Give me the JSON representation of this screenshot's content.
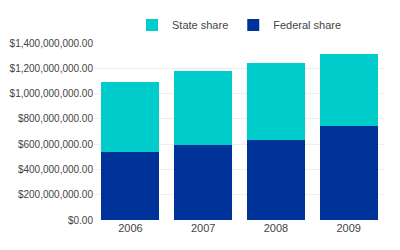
{
  "chart_data": {
    "type": "bar",
    "stacked": true,
    "categories": [
      "2006",
      "2007",
      "2008",
      "2009"
    ],
    "series": [
      {
        "name": "Federal share",
        "color": "#003399",
        "values": [
          540000000,
          590000000,
          635000000,
          740000000
        ]
      },
      {
        "name": "State share",
        "color": "#00CCCC",
        "values": [
          550000000,
          585000000,
          610000000,
          570000000
        ]
      }
    ],
    "ylim": [
      0,
      1400000000
    ],
    "yticks": [
      {
        "value": 0,
        "label": "$0.00"
      },
      {
        "value": 200000000,
        "label": "$200,000,000.00"
      },
      {
        "value": 400000000,
        "label": "$400,000,000.00"
      },
      {
        "value": 600000000,
        "label": "$600,000,000.00"
      },
      {
        "value": 800000000,
        "label": "$800,000,000.00"
      },
      {
        "value": 1000000000,
        "label": "$1,000,000,000.00"
      },
      {
        "value": 1200000000,
        "label": "$1,200,000,000.00"
      },
      {
        "value": 1400000000,
        "label": "$1,400,000,000.00"
      }
    ],
    "grid": true,
    "legend": "top"
  }
}
